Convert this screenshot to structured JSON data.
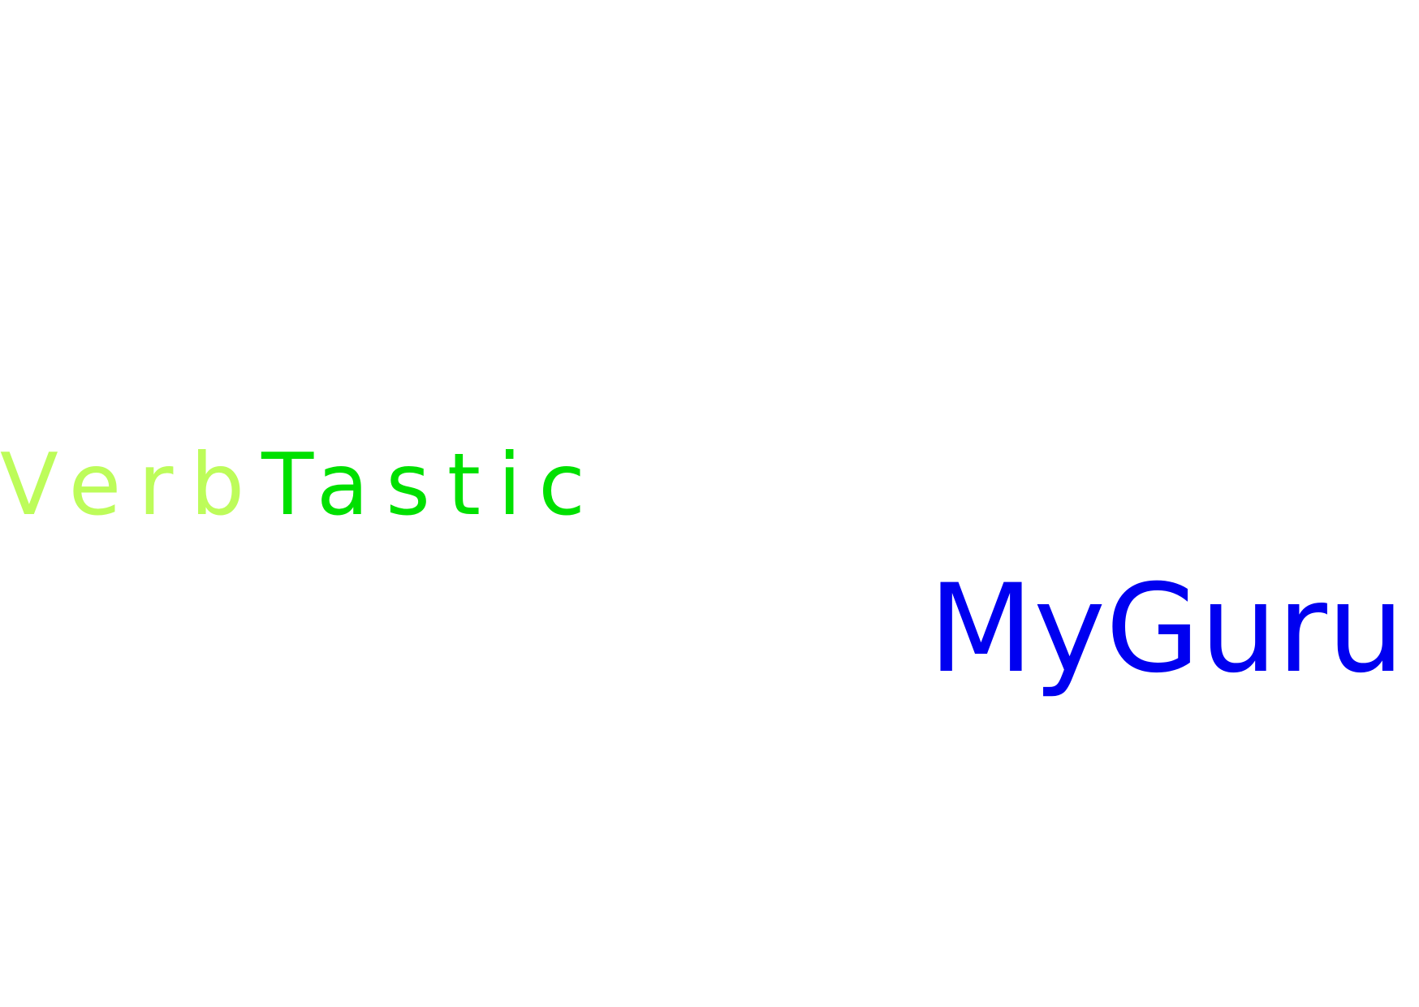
{
  "logo": {
    "word_part_1": "Verb",
    "word_part_2": "Tastic",
    "tagline": "MyGuru"
  },
  "colors": {
    "part_1": "#bdfc5a",
    "part_2": "#00e000",
    "tagline": "#0000f0",
    "background": "#ffffff"
  }
}
